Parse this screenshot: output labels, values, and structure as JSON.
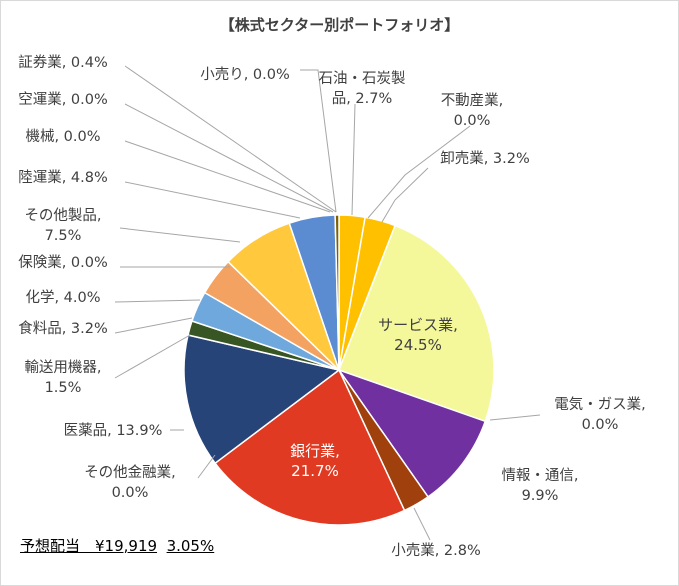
{
  "chart_data": {
    "type": "pie",
    "title": "【株式セクター別ポートフォリオ】",
    "slices": [
      {
        "label": "石油・石炭製品",
        "display": [
          "石油・石炭製",
          "品, 2.7%"
        ],
        "value": 2.7,
        "color": "#FFC000"
      },
      {
        "label": "不動産業",
        "display": [
          "不動産業,",
          "0.0%"
        ],
        "value": 0.0,
        "color": "#FFD966"
      },
      {
        "label": "卸売業",
        "display": [
          "卸売業, 3.2%"
        ],
        "value": 3.2,
        "color": "#FFC000"
      },
      {
        "label": "サービス業",
        "display": [
          "サービス業,",
          "24.5%"
        ],
        "value": 24.5,
        "color": "#F4F89A"
      },
      {
        "label": "電気・ガス業",
        "display": [
          "電気・ガス業,",
          "0.0%"
        ],
        "value": 0.0,
        "color": "#92D050"
      },
      {
        "label": "情報・通信",
        "display": [
          "情報・通信,",
          "9.9%"
        ],
        "value": 9.9,
        "color": "#7030A0"
      },
      {
        "label": "小売業",
        "display": [
          "小売業, 2.8%"
        ],
        "value": 2.8,
        "color": "#A0410D"
      },
      {
        "label": "銀行業",
        "display": [
          "銀行業,",
          "21.7%"
        ],
        "value": 21.7,
        "color": "#E03A22"
      },
      {
        "label": "その他金融業",
        "display": [
          "その他金融業,",
          "0.0%"
        ],
        "value": 0.0,
        "color": "#A6A6A6"
      },
      {
        "label": "医薬品",
        "display": [
          "医薬品, 13.9%"
        ],
        "value": 13.9,
        "color": "#264478"
      },
      {
        "label": "輸送用機器",
        "display": [
          "輸送用機器,",
          "1.5%"
        ],
        "value": 1.5,
        "color": "#375623"
      },
      {
        "label": "食料品",
        "display": [
          "食料品, 3.2%"
        ],
        "value": 3.2,
        "color": "#6FA8DC"
      },
      {
        "label": "化学",
        "display": [
          "化学, 4.0%"
        ],
        "value": 4.0,
        "color": "#F4A261"
      },
      {
        "label": "保険業",
        "display": [
          "保険業, 0.0%"
        ],
        "value": 0.0,
        "color": "#BDD7EE"
      },
      {
        "label": "その他製品",
        "display": [
          "その他製品,",
          "7.5%"
        ],
        "value": 7.5,
        "color": "#FFC83D"
      },
      {
        "label": "陸運業",
        "display": [
          "陸運業, 4.8%"
        ],
        "value": 4.8,
        "color": "#5B8BD0"
      },
      {
        "label": "機械",
        "display": [
          "機械, 0.0%"
        ],
        "value": 0.0,
        "color": "#9DC3E6"
      },
      {
        "label": "空運業",
        "display": [
          "空運業, 0.0%"
        ],
        "value": 0.0,
        "color": "#C5E0B4"
      },
      {
        "label": "証券業",
        "display": [
          "証券業, 0.4%"
        ],
        "value": 0.4,
        "color": "#7F6000"
      },
      {
        "label": "小売り",
        "display": [
          "小売り, 0.0%"
        ],
        "value": 0.0,
        "color": "#FFE699"
      }
    ]
  },
  "footer": {
    "text": "予想配当　¥19,919",
    "yield": "3.05%"
  }
}
